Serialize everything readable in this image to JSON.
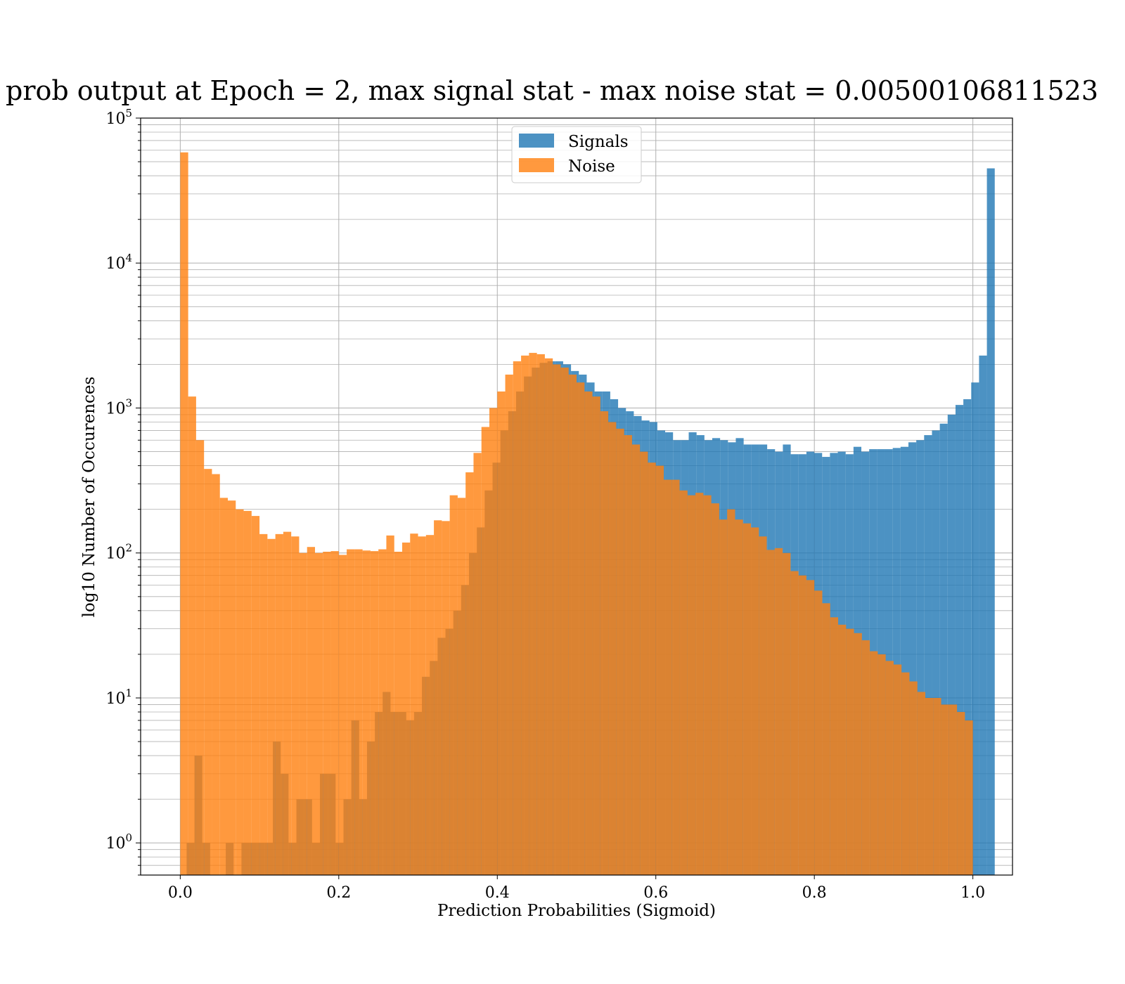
{
  "chart_data": {
    "type": "bar",
    "title": "prob output at Epoch = 2, max signal stat - max noise stat = 0.00500106811523",
    "xlabel": "Prediction Probabilities (Sigmoid)",
    "ylabel": "log10 Number of Occurences",
    "xlim": [
      -0.05,
      1.05
    ],
    "ylim": [
      0.6,
      100000
    ],
    "yscale": "log",
    "grid": true,
    "x_ticks": [
      "0.0",
      "0.2",
      "0.4",
      "0.6",
      "0.8",
      "1.0"
    ],
    "x_tick_values": [
      0.0,
      0.2,
      0.4,
      0.6,
      0.8,
      1.0
    ],
    "y_ticks": [
      {
        "base": "10",
        "exp": "0",
        "value": 1
      },
      {
        "base": "10",
        "exp": "1",
        "value": 10
      },
      {
        "base": "10",
        "exp": "2",
        "value": 100
      },
      {
        "base": "10",
        "exp": "3",
        "value": 1000
      },
      {
        "base": "10",
        "exp": "4",
        "value": 10000
      },
      {
        "base": "10",
        "exp": "5",
        "value": 100000
      }
    ],
    "legend_position": "upper center",
    "series": [
      {
        "name": "Signals",
        "color": "#1f77b4",
        "opacity": 0.8,
        "bins": [
          [
            0.008,
            0.0179,
            1
          ],
          [
            0.0179,
            0.0278,
            4
          ],
          [
            0.0278,
            0.0377,
            1
          ],
          [
            0.0574,
            0.0673,
            1
          ],
          [
            0.0772,
            0.0871,
            1
          ],
          [
            0.0871,
            0.097,
            1
          ],
          [
            0.097,
            0.1069,
            1
          ],
          [
            0.1069,
            0.1168,
            1
          ],
          [
            0.1168,
            0.1267,
            5
          ],
          [
            0.1267,
            0.1366,
            3
          ],
          [
            0.1366,
            0.1465,
            1
          ],
          [
            0.1465,
            0.1564,
            2
          ],
          [
            0.1564,
            0.1663,
            2
          ],
          [
            0.1663,
            0.1762,
            1
          ],
          [
            0.1762,
            0.1861,
            3
          ],
          [
            0.1861,
            0.196,
            3
          ],
          [
            0.196,
            0.2059,
            1
          ],
          [
            0.2059,
            0.2158,
            2
          ],
          [
            0.2158,
            0.2257,
            7
          ],
          [
            0.2257,
            0.2356,
            2
          ],
          [
            0.2356,
            0.2455,
            5
          ],
          [
            0.2455,
            0.2554,
            8
          ],
          [
            0.2554,
            0.2653,
            11
          ],
          [
            0.2653,
            0.2752,
            8
          ],
          [
            0.2752,
            0.2851,
            8
          ],
          [
            0.2851,
            0.295,
            7
          ],
          [
            0.295,
            0.3049,
            8
          ],
          [
            0.3049,
            0.3148,
            14
          ],
          [
            0.3148,
            0.3247,
            18
          ],
          [
            0.3247,
            0.3346,
            26
          ],
          [
            0.3346,
            0.3445,
            30
          ],
          [
            0.3445,
            0.3544,
            40
          ],
          [
            0.3544,
            0.3643,
            60
          ],
          [
            0.3643,
            0.3742,
            100
          ],
          [
            0.3742,
            0.3841,
            150
          ],
          [
            0.3841,
            0.394,
            270
          ],
          [
            0.394,
            0.4039,
            420
          ],
          [
            0.4039,
            0.4138,
            700
          ],
          [
            0.4138,
            0.4237,
            950
          ],
          [
            0.4237,
            0.4336,
            1300
          ],
          [
            0.4336,
            0.4435,
            1650
          ],
          [
            0.4435,
            0.4534,
            1900
          ],
          [
            0.4534,
            0.4633,
            2050
          ],
          [
            0.4633,
            0.4732,
            2100
          ],
          [
            0.4732,
            0.4831,
            2100
          ],
          [
            0.4831,
            0.493,
            2000
          ],
          [
            0.493,
            0.5029,
            1800
          ],
          [
            0.5029,
            0.5128,
            1700
          ],
          [
            0.5128,
            0.5227,
            1500
          ],
          [
            0.5227,
            0.5326,
            1300
          ],
          [
            0.5326,
            0.5425,
            1300
          ],
          [
            0.5425,
            0.5524,
            1150
          ],
          [
            0.5524,
            0.5623,
            1000
          ],
          [
            0.5623,
            0.5722,
            950
          ],
          [
            0.5722,
            0.5821,
            880
          ],
          [
            0.5821,
            0.592,
            820
          ],
          [
            0.592,
            0.6019,
            800
          ],
          [
            0.6019,
            0.6118,
            700
          ],
          [
            0.6118,
            0.6217,
            680
          ],
          [
            0.6217,
            0.6316,
            600
          ],
          [
            0.6316,
            0.6415,
            600
          ],
          [
            0.6415,
            0.6514,
            680
          ],
          [
            0.6514,
            0.6613,
            650
          ],
          [
            0.6613,
            0.6712,
            600
          ],
          [
            0.6712,
            0.6811,
            620
          ],
          [
            0.6811,
            0.691,
            600
          ],
          [
            0.691,
            0.7009,
            580
          ],
          [
            0.7009,
            0.7108,
            620
          ],
          [
            0.7108,
            0.7207,
            560
          ],
          [
            0.7207,
            0.7306,
            560
          ],
          [
            0.7306,
            0.7405,
            560
          ],
          [
            0.7405,
            0.7504,
            520
          ],
          [
            0.7504,
            0.7603,
            500
          ],
          [
            0.7603,
            0.7702,
            560
          ],
          [
            0.7702,
            0.7801,
            480
          ],
          [
            0.7801,
            0.79,
            480
          ],
          [
            0.79,
            0.7999,
            500
          ],
          [
            0.7999,
            0.8098,
            490
          ],
          [
            0.8098,
            0.8197,
            460
          ],
          [
            0.8197,
            0.8296,
            490
          ],
          [
            0.8296,
            0.8395,
            500
          ],
          [
            0.8395,
            0.8494,
            480
          ],
          [
            0.8494,
            0.8593,
            540
          ],
          [
            0.8593,
            0.8692,
            500
          ],
          [
            0.8692,
            0.8791,
            520
          ],
          [
            0.8791,
            0.889,
            520
          ],
          [
            0.889,
            0.8989,
            520
          ],
          [
            0.8989,
            0.9088,
            530
          ],
          [
            0.9088,
            0.9187,
            540
          ],
          [
            0.9187,
            0.9286,
            580
          ],
          [
            0.9286,
            0.9385,
            600
          ],
          [
            0.9385,
            0.9484,
            650
          ],
          [
            0.9484,
            0.9583,
            700
          ],
          [
            0.9583,
            0.9682,
            780
          ],
          [
            0.9682,
            0.9781,
            900
          ],
          [
            0.9781,
            0.988,
            1050
          ],
          [
            0.988,
            0.9979,
            1150
          ],
          [
            0.9979,
            1.0078,
            1500
          ],
          [
            1.0078,
            1.0177,
            2300
          ],
          [
            1.0177,
            1.0276,
            45000
          ]
        ]
      },
      {
        "name": "Noise",
        "color": "#ff7f0e",
        "opacity": 0.8,
        "bins": [
          [
            0.0,
            0.01,
            58000
          ],
          [
            0.01,
            0.02,
            1200
          ],
          [
            0.02,
            0.03,
            600
          ],
          [
            0.03,
            0.04,
            380
          ],
          [
            0.04,
            0.05,
            350
          ],
          [
            0.05,
            0.06,
            240
          ],
          [
            0.06,
            0.07,
            230
          ],
          [
            0.07,
            0.08,
            200
          ],
          [
            0.08,
            0.09,
            195
          ],
          [
            0.09,
            0.1,
            180
          ],
          [
            0.1,
            0.11,
            135
          ],
          [
            0.11,
            0.12,
            125
          ],
          [
            0.12,
            0.13,
            135
          ],
          [
            0.13,
            0.14,
            140
          ],
          [
            0.14,
            0.15,
            130
          ],
          [
            0.15,
            0.16,
            100
          ],
          [
            0.16,
            0.17,
            110
          ],
          [
            0.17,
            0.18,
            100
          ],
          [
            0.18,
            0.19,
            102
          ],
          [
            0.19,
            0.2,
            103
          ],
          [
            0.2,
            0.21,
            97
          ],
          [
            0.21,
            0.22,
            106
          ],
          [
            0.22,
            0.23,
            106
          ],
          [
            0.23,
            0.24,
            104
          ],
          [
            0.24,
            0.25,
            103
          ],
          [
            0.25,
            0.26,
            106
          ],
          [
            0.26,
            0.27,
            132
          ],
          [
            0.27,
            0.28,
            102
          ],
          [
            0.28,
            0.29,
            118
          ],
          [
            0.29,
            0.3,
            136
          ],
          [
            0.3,
            0.31,
            130
          ],
          [
            0.31,
            0.32,
            133
          ],
          [
            0.32,
            0.33,
            168
          ],
          [
            0.33,
            0.34,
            166
          ],
          [
            0.34,
            0.35,
            250
          ],
          [
            0.35,
            0.36,
            240
          ],
          [
            0.36,
            0.37,
            360
          ],
          [
            0.37,
            0.38,
            490
          ],
          [
            0.38,
            0.39,
            740
          ],
          [
            0.39,
            0.4,
            1000
          ],
          [
            0.4,
            0.41,
            1300
          ],
          [
            0.41,
            0.42,
            1700
          ],
          [
            0.42,
            0.43,
            2100
          ],
          [
            0.43,
            0.44,
            2300
          ],
          [
            0.44,
            0.45,
            2400
          ],
          [
            0.45,
            0.46,
            2350
          ],
          [
            0.46,
            0.47,
            2200
          ],
          [
            0.47,
            0.48,
            2000
          ],
          [
            0.48,
            0.49,
            1900
          ],
          [
            0.49,
            0.5,
            1700
          ],
          [
            0.5,
            0.51,
            1500
          ],
          [
            0.51,
            0.52,
            1300
          ],
          [
            0.52,
            0.53,
            1200
          ],
          [
            0.53,
            0.54,
            950
          ],
          [
            0.54,
            0.55,
            800
          ],
          [
            0.55,
            0.56,
            720
          ],
          [
            0.56,
            0.57,
            650
          ],
          [
            0.57,
            0.58,
            560
          ],
          [
            0.58,
            0.59,
            500
          ],
          [
            0.59,
            0.6,
            420
          ],
          [
            0.6,
            0.61,
            400
          ],
          [
            0.61,
            0.62,
            320
          ],
          [
            0.62,
            0.63,
            320
          ],
          [
            0.63,
            0.64,
            270
          ],
          [
            0.64,
            0.65,
            250
          ],
          [
            0.65,
            0.66,
            260
          ],
          [
            0.66,
            0.67,
            250
          ],
          [
            0.67,
            0.68,
            220
          ],
          [
            0.68,
            0.69,
            170
          ],
          [
            0.69,
            0.7,
            200
          ],
          [
            0.7,
            0.71,
            170
          ],
          [
            0.71,
            0.72,
            160
          ],
          [
            0.72,
            0.73,
            150
          ],
          [
            0.73,
            0.74,
            130
          ],
          [
            0.74,
            0.75,
            105
          ],
          [
            0.75,
            0.76,
            108
          ],
          [
            0.76,
            0.77,
            100
          ],
          [
            0.77,
            0.78,
            75
          ],
          [
            0.78,
            0.79,
            70
          ],
          [
            0.79,
            0.8,
            65
          ],
          [
            0.8,
            0.81,
            55
          ],
          [
            0.81,
            0.82,
            45
          ],
          [
            0.82,
            0.83,
            36
          ],
          [
            0.83,
            0.84,
            32
          ],
          [
            0.84,
            0.85,
            30
          ],
          [
            0.85,
            0.86,
            28
          ],
          [
            0.86,
            0.87,
            25
          ],
          [
            0.87,
            0.88,
            21
          ],
          [
            0.88,
            0.89,
            20
          ],
          [
            0.89,
            0.9,
            18
          ],
          [
            0.9,
            0.91,
            17
          ],
          [
            0.91,
            0.92,
            15
          ],
          [
            0.92,
            0.93,
            13
          ],
          [
            0.93,
            0.94,
            11
          ],
          [
            0.94,
            0.95,
            10
          ],
          [
            0.95,
            0.96,
            10
          ],
          [
            0.96,
            0.97,
            9
          ],
          [
            0.97,
            0.98,
            9
          ],
          [
            0.98,
            0.99,
            8
          ],
          [
            0.99,
            1.0,
            7
          ]
        ]
      }
    ]
  }
}
